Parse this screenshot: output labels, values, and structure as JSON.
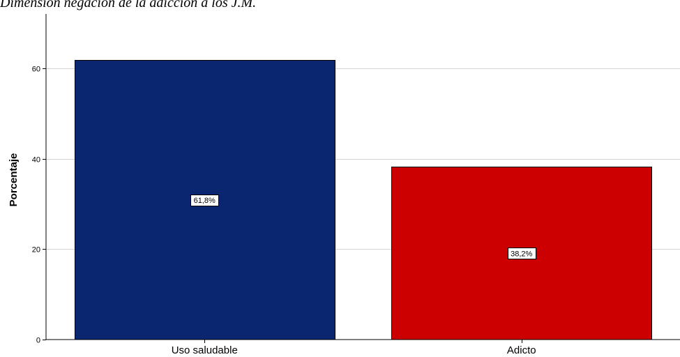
{
  "chart_data": {
    "type": "bar",
    "title": "Dimensión negación de la adicción a los J.M.",
    "xlabel": "",
    "ylabel": "Porcentaje",
    "categories": [
      "Uso saludable",
      "Adicto"
    ],
    "values": [
      61.8,
      38.2
    ],
    "data_labels": [
      "61,8%",
      "38,2%"
    ],
    "bar_colors": [
      "#0a2671",
      "#cc0000"
    ],
    "ylim": [
      0,
      72
    ],
    "yticks": [
      0,
      20,
      40,
      60
    ],
    "ytick_labels": [
      "0",
      "20",
      "40",
      "60"
    ],
    "grid": true,
    "legend": "none"
  }
}
